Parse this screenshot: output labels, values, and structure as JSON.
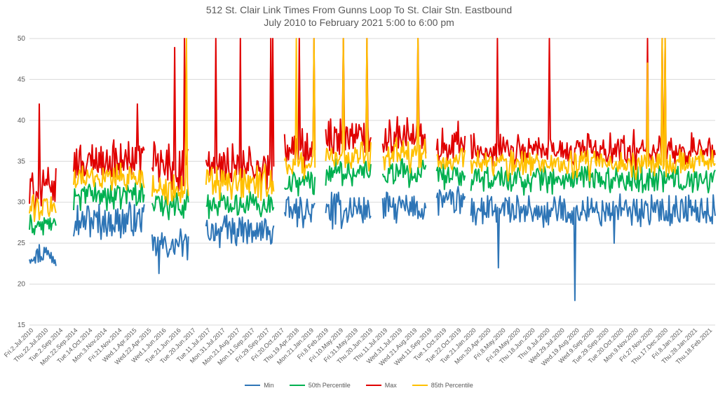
{
  "chart_data": {
    "type": "line",
    "title": "512 St. Clair Link Times From Gunns Loop To St. Clair Stn. Eastbound",
    "subtitle": "July 2010 to February 2021 5:00 to 6:00 pm",
    "xlabel": "",
    "ylabel": "",
    "ylim": [
      15,
      50
    ],
    "yticks": [
      15,
      20,
      25,
      30,
      35,
      40,
      45,
      50
    ],
    "grid": true,
    "legend_position": "bottom",
    "x_tick_labels": [
      "Fri.2.Jul.2010",
      "Thu.22.Jul.2010",
      "Tue.2.Sep.2014",
      "Mon.22.Sep.2014",
      "Tue.14.Oct.2014",
      "Mon.3.Nov.2014",
      "Fri.21.Nov.2014",
      "Wed.1.Apr.2015",
      "Wed.22.Apr.2015",
      "Wed.1.Jun.2016",
      "Tue.21.Jun.2016",
      "Tue.20.Jun.2017",
      "Tue.11.Jul.2017",
      "Mon.31.Jul.2017",
      "Mon.21.Aug.2017",
      "Mon.11.Sep.2017",
      "Fri.29.Sep.2017",
      "Fri.20.Oct.2017",
      "Thu.19.Apr.2018",
      "Mon.21.Jan.2019",
      "Fri.8.Feb.2019",
      "Fri.10.May.2019",
      "Fri.31.May.2019",
      "Thu.20.Jun.2019",
      "Thu.11.Jul.2019",
      "Wed.31.Jul.2019",
      "Wed.21.Aug.2019",
      "Wed.11.Sep.2019",
      "Tue.1.Oct.2019",
      "Tue.22.Oct.2019",
      "Tue.21.Jan.2020",
      "Mon.20.Apr.2020",
      "Fri.8.May.2020",
      "Fri.29.May.2020",
      "Thu.18.Jun.2020",
      "Thu.9.Jul.2020",
      "Wed.29.Jul.2020",
      "Wed.19.Aug.2020",
      "Wed.9.Sep.2020",
      "Tue.29.Sep.2020",
      "Tue.20.Oct.2020",
      "Mon.9.Nov.2020",
      "Fri.27.Nov.2020",
      "Thu.17.Dec.2020",
      "Fri.8.Jan.2021",
      "Thu.28.Jan.2021",
      "Thu.18.Feb.2021"
    ],
    "n_points": 700,
    "gaps": [
      [
        28,
        45
      ],
      [
        118,
        125
      ],
      [
        163,
        180
      ],
      [
        250,
        260
      ],
      [
        292,
        302
      ],
      [
        349,
        360
      ],
      [
        405,
        415
      ],
      [
        445,
        450
      ],
      [
        602,
        604
      ]
    ],
    "series": [
      {
        "name": "Min",
        "color": "#2E75B6",
        "segments": [
          {
            "from": 0,
            "to": 28,
            "level": 23.8,
            "amp": 1.2
          },
          {
            "from": 45,
            "to": 118,
            "level": 27.8,
            "amp": 1.8
          },
          {
            "from": 125,
            "to": 163,
            "level": 24.8,
            "amp": 1.5
          },
          {
            "from": 180,
            "to": 250,
            "level": 26.5,
            "amp": 1.6
          },
          {
            "from": 260,
            "to": 292,
            "level": 28.8,
            "amp": 1.4
          },
          {
            "from": 302,
            "to": 349,
            "level": 29.0,
            "amp": 1.7
          },
          {
            "from": 360,
            "to": 405,
            "level": 29.3,
            "amp": 1.5
          },
          {
            "from": 415,
            "to": 445,
            "level": 30.0,
            "amp": 1.6
          },
          {
            "from": 450,
            "to": 700,
            "level": 28.9,
            "amp": 1.6
          }
        ],
        "spikes": [
          [
            132,
            21.3
          ],
          [
            420,
            30.6
          ],
          [
            478,
            22.0
          ],
          [
            556,
            18.0
          ],
          [
            596,
            25.0
          ],
          [
            602,
            31.0
          ]
        ]
      },
      {
        "name": "50th Percentile",
        "color": "#00B050",
        "segments": [
          {
            "from": 0,
            "to": 28,
            "level": 27.2,
            "amp": 1.0
          },
          {
            "from": 45,
            "to": 118,
            "level": 30.8,
            "amp": 1.5
          },
          {
            "from": 125,
            "to": 163,
            "level": 29.8,
            "amp": 1.5
          },
          {
            "from": 180,
            "to": 250,
            "level": 29.8,
            "amp": 1.4
          },
          {
            "from": 260,
            "to": 292,
            "level": 32.5,
            "amp": 1.3
          },
          {
            "from": 302,
            "to": 349,
            "level": 33.6,
            "amp": 1.4
          },
          {
            "from": 360,
            "to": 405,
            "level": 33.5,
            "amp": 1.4
          },
          {
            "from": 415,
            "to": 445,
            "level": 33.2,
            "amp": 1.2
          },
          {
            "from": 450,
            "to": 700,
            "level": 32.8,
            "amp": 1.4
          }
        ],
        "spikes": [
          [
            166,
            37.0
          ],
          [
            167,
            40.0
          ],
          [
            168,
            38.5
          ]
        ]
      },
      {
        "name": "Max",
        "color": "#E00000",
        "segments": [
          {
            "from": 0,
            "to": 28,
            "level": 31.0,
            "amp": 2.6
          },
          {
            "from": 45,
            "to": 118,
            "level": 34.8,
            "amp": 2.3
          },
          {
            "from": 125,
            "to": 163,
            "level": 34.0,
            "amp": 3.2
          },
          {
            "from": 180,
            "to": 250,
            "level": 33.8,
            "amp": 2.8
          },
          {
            "from": 260,
            "to": 292,
            "level": 36.0,
            "amp": 2.6
          },
          {
            "from": 302,
            "to": 349,
            "level": 37.0,
            "amp": 2.6
          },
          {
            "from": 360,
            "to": 405,
            "level": 37.2,
            "amp": 2.6
          },
          {
            "from": 415,
            "to": 445,
            "level": 37.0,
            "amp": 2.4
          },
          {
            "from": 450,
            "to": 700,
            "level": 35.8,
            "amp": 2.2
          }
        ],
        "spikes": [
          [
            10,
            42.0
          ],
          [
            110,
            42.0
          ],
          [
            148,
            48.9
          ],
          [
            158,
            50
          ],
          [
            172,
            50
          ],
          [
            178,
            50
          ],
          [
            190,
            50
          ],
          [
            215,
            50
          ],
          [
            246,
            50
          ],
          [
            248,
            50
          ],
          [
            275,
            50
          ],
          [
            290,
            50
          ],
          [
            320,
            50
          ],
          [
            344,
            50
          ],
          [
            396,
            50
          ],
          [
            477,
            50
          ],
          [
            530,
            50
          ],
          [
            630,
            50
          ],
          [
            645,
            50
          ],
          [
            648,
            50
          ]
        ]
      },
      {
        "name": "85th Percentile",
        "color": "#FFC000",
        "segments": [
          {
            "from": 0,
            "to": 28,
            "level": 29.2,
            "amp": 1.6
          },
          {
            "from": 45,
            "to": 118,
            "level": 33.0,
            "amp": 1.6
          },
          {
            "from": 125,
            "to": 163,
            "level": 31.5,
            "amp": 2.0
          },
          {
            "from": 180,
            "to": 250,
            "level": 32.2,
            "amp": 1.8
          },
          {
            "from": 260,
            "to": 292,
            "level": 34.5,
            "amp": 1.7
          },
          {
            "from": 302,
            "to": 349,
            "level": 35.4,
            "amp": 1.8
          },
          {
            "from": 360,
            "to": 405,
            "level": 35.5,
            "amp": 1.8
          },
          {
            "from": 415,
            "to": 445,
            "level": 35.0,
            "amp": 1.6
          },
          {
            "from": 450,
            "to": 700,
            "level": 34.4,
            "amp": 1.6
          }
        ],
        "spikes": [
          [
            160,
            50
          ],
          [
            174,
            42.5
          ],
          [
            272,
            50
          ],
          [
            290,
            50
          ],
          [
            320,
            50
          ],
          [
            344,
            50
          ],
          [
            396,
            50
          ],
          [
            630,
            47.0
          ],
          [
            645,
            50
          ],
          [
            648,
            50
          ]
        ]
      }
    ]
  }
}
